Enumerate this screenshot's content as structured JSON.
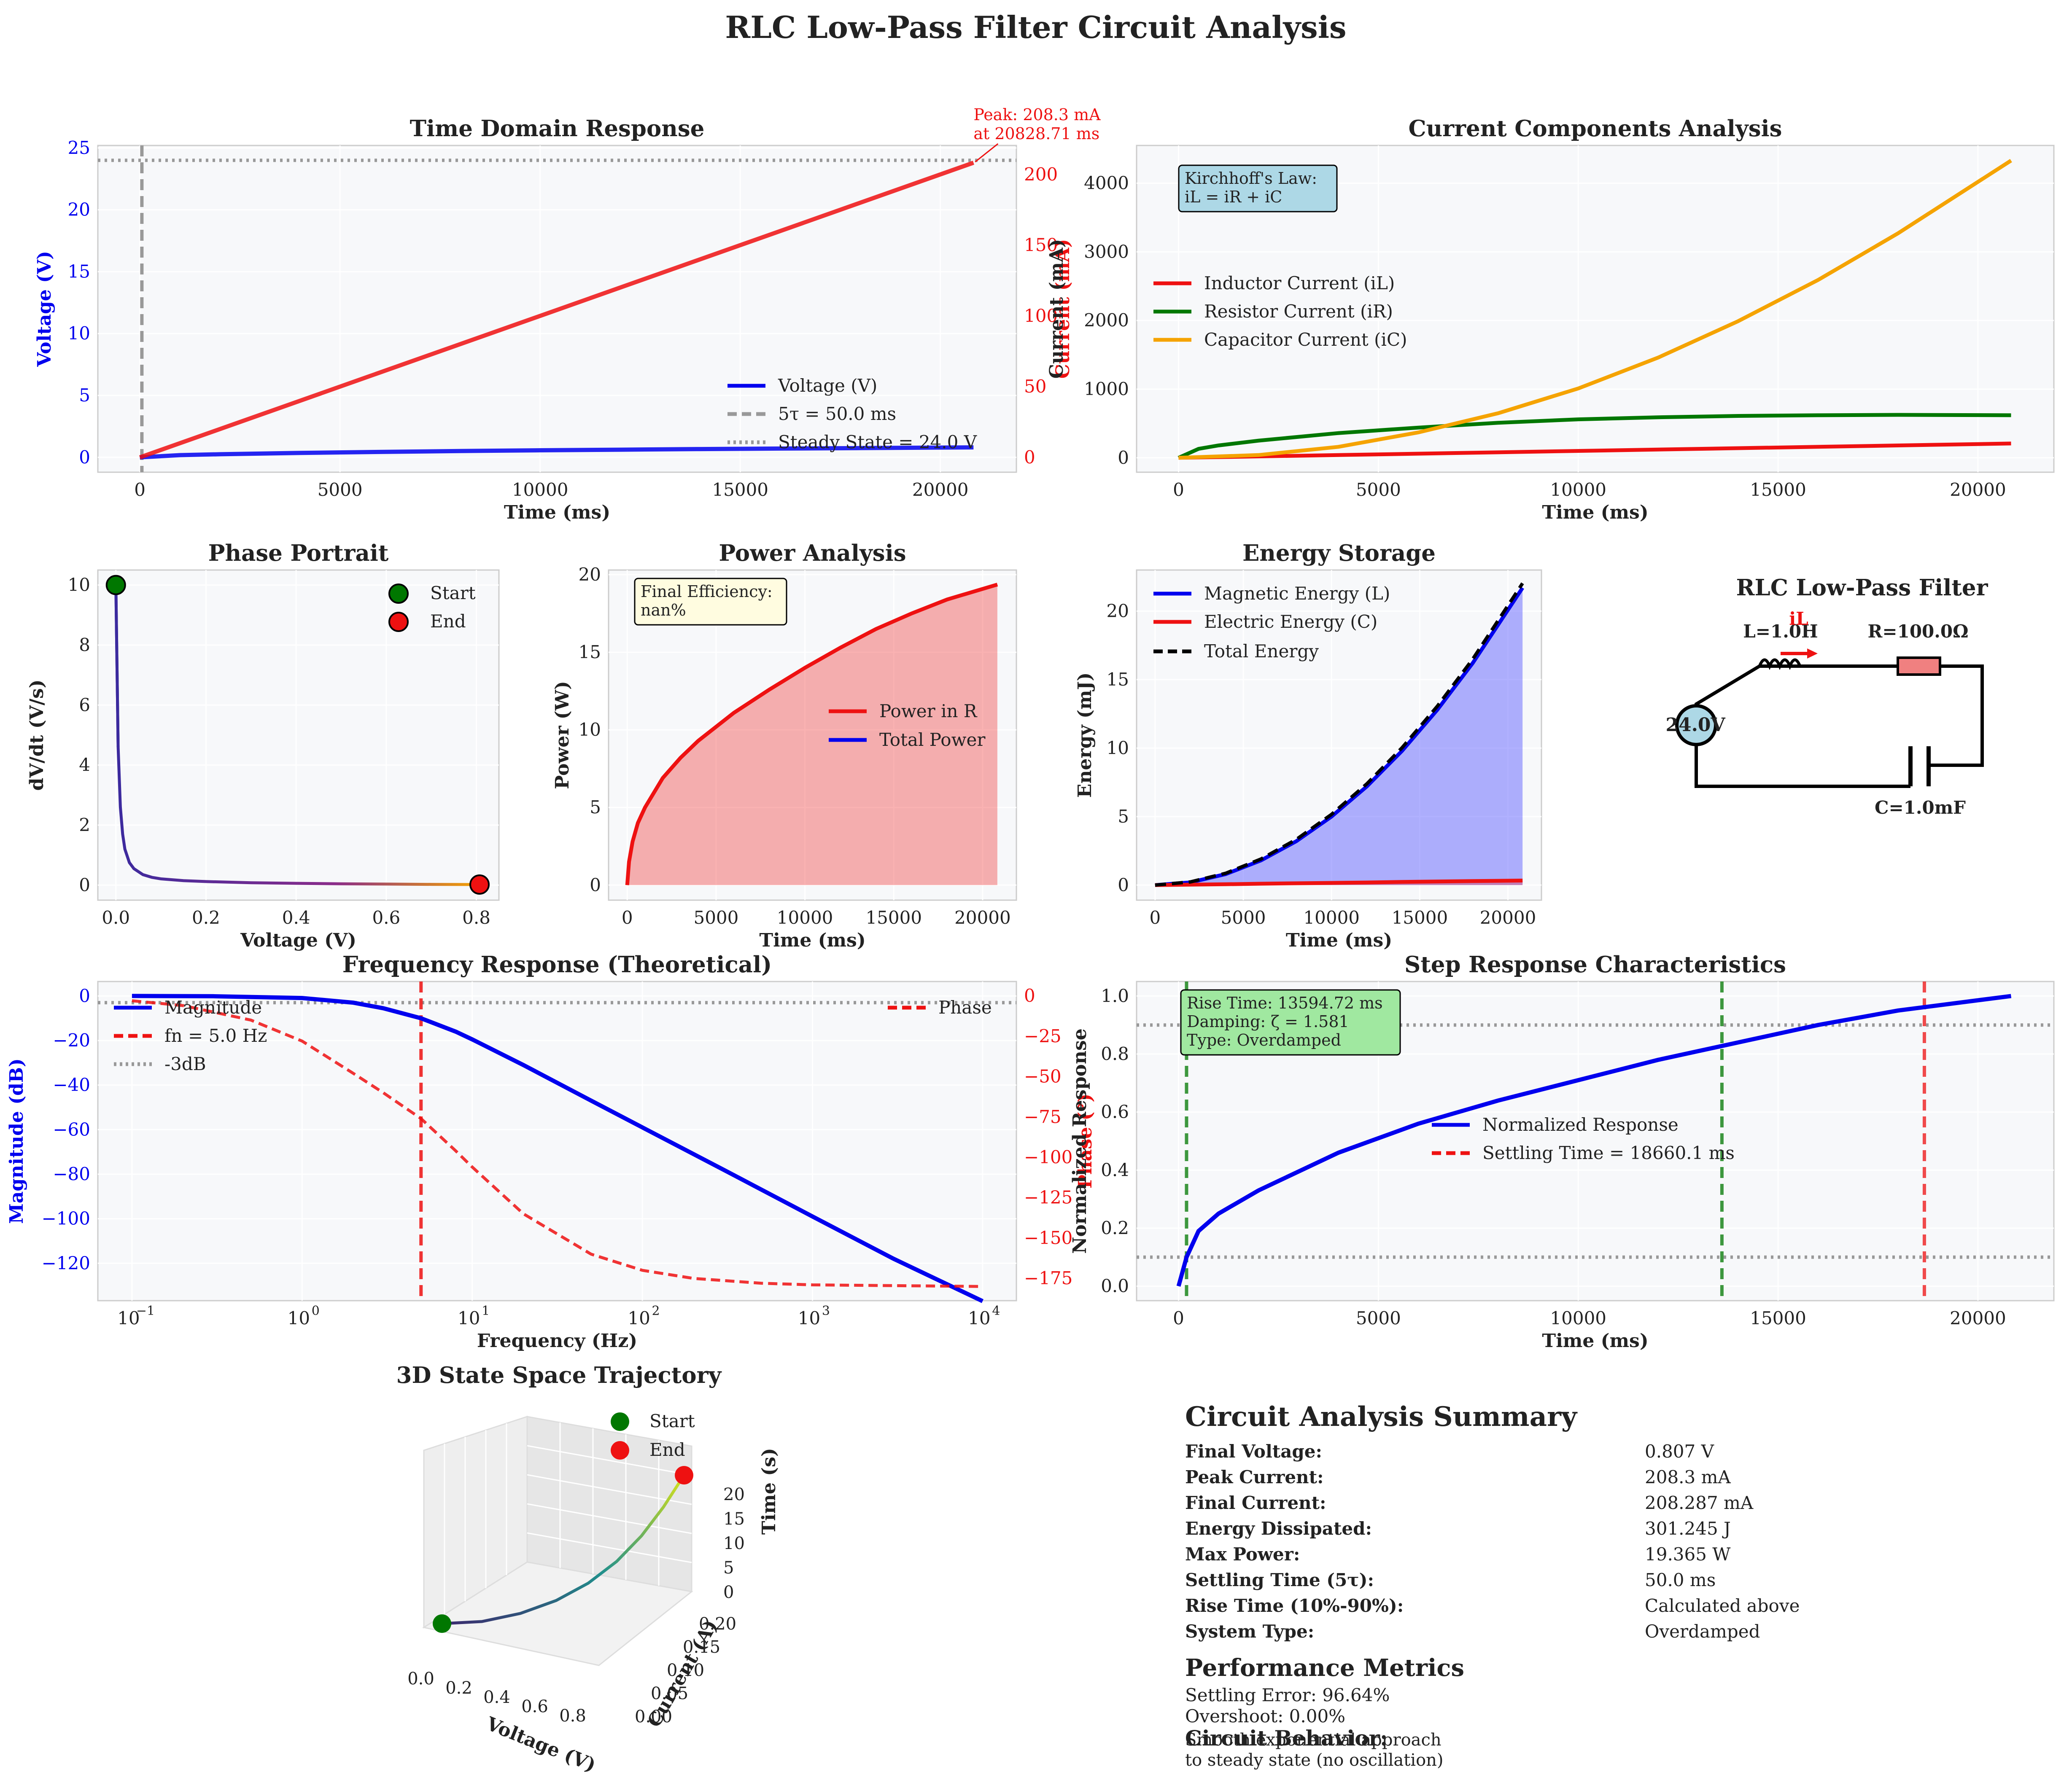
{
  "figure": {
    "title": "RLC Low-Pass Filter Circuit Analysis"
  },
  "colors": {
    "blue": "#0000ee",
    "red": "#ee1111",
    "green": "#007700",
    "orange": "#f5a300",
    "gray": "#999999",
    "panel_bg": "#f7f8fa",
    "grid": "#ffffff",
    "spine": "#cccccc"
  },
  "chart_data": [
    {
      "id": "time_domain",
      "type": "line",
      "title": "Time Domain Response",
      "xlabel": "Time (ms)",
      "ylabel": "Voltage (V)",
      "y2label": "Current (mA)",
      "xlim": [
        -1050,
        21900
      ],
      "ylim": [
        -1.2,
        25.2
      ],
      "y2lim": [
        -10.5,
        220.5
      ],
      "xticks": [
        0,
        5000,
        10000,
        15000,
        20000
      ],
      "yticks": [
        0,
        5,
        10,
        15,
        20,
        25
      ],
      "y2ticks": [
        0,
        50,
        100,
        150,
        200
      ],
      "series": [
        {
          "name": "Voltage (V)",
          "axis": "y",
          "x": [
            0,
            1000,
            2000,
            4000,
            6000,
            8000,
            10000,
            12000,
            14000,
            16000,
            18000,
            20828.71
          ],
          "values": [
            0,
            0.18,
            0.25,
            0.36,
            0.44,
            0.51,
            0.57,
            0.62,
            0.67,
            0.71,
            0.75,
            0.807
          ]
        },
        {
          "name": "Current (mA)",
          "axis": "y2",
          "x": [
            0,
            20828.71
          ],
          "values": [
            0,
            208.3
          ]
        }
      ],
      "legend": [
        {
          "label": "Voltage (V)",
          "style": "solid",
          "color": "blue"
        },
        {
          "label": "5τ = 50.0 ms",
          "style": "dashed",
          "color": "gray"
        },
        {
          "label": "Steady State = 24.0 V",
          "style": "dotted",
          "color": "gray"
        }
      ],
      "vline_x": 50,
      "hline_y": 24.0,
      "annotation": [
        "Peak: 208.3 mA",
        "at 20828.71 ms"
      ]
    },
    {
      "id": "current_components",
      "type": "line",
      "title": "Current Components Analysis",
      "xlabel": "Time (ms)",
      "ylabel": "Current (mA)",
      "xlim": [
        -1050,
        21900
      ],
      "ylim": [
        -210,
        4550
      ],
      "xticks": [
        0,
        5000,
        10000,
        15000,
        20000
      ],
      "yticks": [
        0,
        1000,
        2000,
        3000,
        4000
      ],
      "series": [
        {
          "name": "Inductor Current (iL)",
          "x": [
            0,
            20828.71
          ],
          "values": [
            0,
            208.3
          ]
        },
        {
          "name": "Resistor Current (iR)",
          "x": [
            0,
            500,
            1000,
            2000,
            4000,
            6000,
            8000,
            10000,
            12000,
            14000,
            16000,
            18000,
            20828.71
          ],
          "values": [
            0,
            130,
            180,
            250,
            360,
            440,
            510,
            560,
            590,
            610,
            620,
            625,
            620
          ]
        },
        {
          "name": "Capacitor Current (iC)",
          "x": [
            0,
            2000,
            4000,
            6000,
            8000,
            10000,
            12000,
            14000,
            16000,
            18000,
            20828.71
          ],
          "values": [
            0,
            40,
            160,
            370,
            650,
            1010,
            1460,
            1990,
            2590,
            3270,
            4330
          ]
        }
      ],
      "textbox": [
        "Kirchhoff's Law:",
        "iL = iR + iC"
      ]
    },
    {
      "id": "phase_portrait",
      "type": "line",
      "title": "Phase Portrait",
      "xlabel": "Voltage (V)",
      "ylabel": "dV/dt (V/s)",
      "xlim": [
        -0.04,
        0.85
      ],
      "ylim": [
        -0.5,
        10.5
      ],
      "xticks": [
        0.0,
        0.2,
        0.4,
        0.6,
        0.8
      ],
      "yticks": [
        0,
        2,
        4,
        6,
        8,
        10
      ],
      "series": [
        {
          "name": "trajectory",
          "x": [
            0.0,
            0.005,
            0.01,
            0.015,
            0.02,
            0.03,
            0.04,
            0.06,
            0.08,
            0.1,
            0.15,
            0.2,
            0.3,
            0.4,
            0.5,
            0.6,
            0.7,
            0.807
          ],
          "values": [
            10,
            4.6,
            2.6,
            1.7,
            1.2,
            0.75,
            0.55,
            0.35,
            0.26,
            0.21,
            0.15,
            0.12,
            0.08,
            0.06,
            0.045,
            0.035,
            0.025,
            0.02
          ]
        }
      ],
      "markers": [
        {
          "label": "Start",
          "x": 0.0,
          "y": 10
        },
        {
          "label": "End",
          "x": 0.807,
          "y": 0.02
        }
      ]
    },
    {
      "id": "power_analysis",
      "type": "area",
      "title": "Power Analysis",
      "xlabel": "Time (ms)",
      "ylabel": "Power (W)",
      "xlim": [
        -1050,
        21900
      ],
      "ylim": [
        -0.97,
        20.3
      ],
      "xticks": [
        0,
        5000,
        10000,
        15000,
        20000
      ],
      "yticks": [
        0,
        5,
        10,
        15,
        20
      ],
      "series": [
        {
          "name": "Power in R",
          "x": [
            0,
            100,
            300,
            600,
            1000,
            2000,
            3000,
            4000,
            6000,
            8000,
            10000,
            12000,
            14000,
            16000,
            18000,
            20828.71
          ],
          "values": [
            0,
            1.5,
            2.8,
            4.0,
            5.0,
            6.9,
            8.2,
            9.3,
            11.1,
            12.6,
            14.0,
            15.3,
            16.5,
            17.5,
            18.4,
            19.365
          ]
        }
      ],
      "legend": [
        {
          "label": "Power in R",
          "color": "red"
        },
        {
          "label": "Total Power",
          "color": "blue"
        }
      ],
      "textbox": [
        "Final Efficiency:",
        "nan%"
      ]
    },
    {
      "id": "energy_storage",
      "type": "area",
      "title": "Energy Storage",
      "xlabel": "Time (ms)",
      "ylabel": "Energy (mJ)",
      "xlim": [
        -1050,
        21900
      ],
      "ylim": [
        -1.1,
        23.0
      ],
      "xticks": [
        0,
        5000,
        10000,
        15000,
        20000
      ],
      "yticks": [
        0,
        5,
        10,
        15,
        20
      ],
      "series": [
        {
          "name": "Magnetic Energy (L)",
          "x": [
            0,
            2000,
            4000,
            6000,
            8000,
            10000,
            12000,
            14000,
            16000,
            18000,
            20828.71
          ],
          "values": [
            0,
            0.2,
            0.8,
            1.8,
            3.2,
            5.0,
            7.2,
            9.8,
            12.8,
            16.2,
            21.7
          ]
        },
        {
          "name": "Electric Energy (C)",
          "x": [
            0,
            2000,
            4000,
            6000,
            8000,
            10000,
            12000,
            14000,
            16000,
            18000,
            20828.71
          ],
          "values": [
            0,
            0.03,
            0.06,
            0.1,
            0.13,
            0.16,
            0.19,
            0.23,
            0.26,
            0.29,
            0.33
          ]
        },
        {
          "name": "Total Energy",
          "x": [
            0,
            2000,
            4000,
            6000,
            8000,
            10000,
            12000,
            14000,
            16000,
            18000,
            20828.71
          ],
          "values": [
            0,
            0.23,
            0.86,
            1.9,
            3.33,
            5.16,
            7.39,
            10.03,
            13.06,
            16.49,
            22.03
          ]
        }
      ]
    },
    {
      "id": "frequency_response",
      "type": "line",
      "title": "Frequency Response (Theoretical)",
      "xlabel": "Frequency (Hz)",
      "ylabel": "Magnitude (dB)",
      "y2label": "Phase (°)",
      "xscale": "log",
      "xlim": [
        0.063,
        15800
      ],
      "ylim": [
        -136.8,
        6.5
      ],
      "y2lim": [
        -188.8,
        8.9
      ],
      "xtick_labels": [
        "10",
        "10",
        "10",
        "10",
        "10",
        "10"
      ],
      "xtick_exponents": [
        "−1",
        "0",
        "1",
        "2",
        "3",
        "4"
      ],
      "xticks": [
        0.1,
        1,
        10,
        100,
        1000,
        10000
      ],
      "yticks": [
        0,
        -20,
        -40,
        -60,
        -80,
        -100,
        -120
      ],
      "y2ticks": [
        0,
        -25,
        -50,
        -75,
        -100,
        -125,
        -150,
        -175
      ],
      "series": [
        {
          "name": "Magnitude",
          "axis": "y",
          "x": [
            0.1,
            0.3,
            1,
            2,
            3,
            5,
            8,
            10,
            20,
            50,
            100,
            300,
            1000,
            3000,
            10000
          ],
          "values": [
            0,
            -0.1,
            -0.9,
            -3.0,
            -5.5,
            -10,
            -16,
            -19.5,
            -31,
            -47,
            -59,
            -78,
            -99,
            -118,
            -137
          ]
        },
        {
          "name": "Phase",
          "axis": "y2",
          "x": [
            0.1,
            0.2,
            0.5,
            1,
            2,
            3,
            5,
            8,
            10,
            20,
            50,
            100,
            200,
            500,
            1000,
            10000
          ],
          "values": [
            -3,
            -6,
            -15,
            -28,
            -48,
            -60,
            -76,
            -96,
            -106,
            -135,
            -160,
            -170,
            -175,
            -178,
            -179,
            -180
          ]
        }
      ],
      "legend": [
        {
          "label": "Magnitude",
          "color": "blue",
          "style": "solid"
        },
        {
          "label": "fn = 5.0 Hz",
          "color": "red",
          "style": "dashed"
        },
        {
          "label": "-3dB",
          "color": "gray",
          "style": "dotted"
        }
      ],
      "legend2": [
        {
          "label": "Phase",
          "color": "red",
          "style": "dashed"
        }
      ],
      "vline_x": 5.0,
      "hline_y": -3
    },
    {
      "id": "step_response",
      "type": "line",
      "title": "Step Response Characteristics",
      "xlabel": "Time (ms)",
      "ylabel": "Normalized Response",
      "xlim": [
        -1050,
        21900
      ],
      "ylim": [
        -0.05,
        1.05
      ],
      "xticks": [
        0,
        5000,
        10000,
        15000,
        20000
      ],
      "yticks": [
        0.0,
        0.2,
        0.4,
        0.6,
        0.8,
        1.0
      ],
      "series": [
        {
          "name": "Normalized Response",
          "x": [
            0,
            200,
            500,
            1000,
            2000,
            4000,
            6000,
            8000,
            10000,
            12000,
            14000,
            16000,
            18000,
            20828.71
          ],
          "values": [
            0,
            0.1,
            0.19,
            0.25,
            0.33,
            0.46,
            0.56,
            0.64,
            0.71,
            0.78,
            0.84,
            0.9,
            0.95,
            1.0
          ]
        }
      ],
      "legend": [
        {
          "label": "Normalized Response",
          "color": "blue",
          "style": "solid"
        },
        {
          "label": "Settling Time = 18660.1 ms",
          "color": "red",
          "style": "dashed"
        }
      ],
      "vlines_green": [
        200,
        13594.72
      ],
      "vline_red": 18660.1,
      "hlines": [
        0.1,
        0.9
      ],
      "textbox": [
        "Rise Time: 13594.72 ms",
        "Damping: ζ = 1.581",
        "Type: Overdamped"
      ]
    },
    {
      "id": "state_space_3d",
      "type": "line",
      "title": "3D State Space Trajectory",
      "xlabel": "Voltage (V)",
      "ylabel": "Current (A)",
      "zlabel": "Time (s)",
      "xticks": [
        0.0,
        0.2,
        0.4,
        0.6,
        0.8
      ],
      "yticks": [
        0.0,
        0.05,
        0.1,
        0.15,
        0.2
      ],
      "zticks": [
        0,
        5,
        10,
        15,
        20
      ],
      "series": [
        {
          "name": "trajectory",
          "x": [
            0,
            0.1,
            0.2,
            0.3,
            0.4,
            0.5,
            0.6,
            0.7,
            0.807
          ],
          "y": [
            0,
            0.02,
            0.04,
            0.07,
            0.1,
            0.13,
            0.16,
            0.19,
            0.208
          ],
          "values": [
            0,
            0.5,
            1.5,
            3,
            5,
            8,
            11,
            15,
            20.8
          ]
        }
      ],
      "legend": [
        {
          "label": "Start",
          "color": "green"
        },
        {
          "label": "End",
          "color": "red"
        }
      ]
    }
  ],
  "circuit": {
    "title": "RLC Low-Pass Filter",
    "L": "L=1.0H",
    "R": "R=100.0Ω",
    "C": "C=1.0mF",
    "source": "24.0V",
    "current": "iL"
  },
  "summary": {
    "title": "Circuit Analysis Summary",
    "rows": [
      {
        "label": "Final Voltage:",
        "value": "0.807 V"
      },
      {
        "label": "Peak Current:",
        "value": "208.3 mA"
      },
      {
        "label": "Final Current:",
        "value": "208.287 mA"
      },
      {
        "label": "Energy Dissipated:",
        "value": "301.245 J"
      },
      {
        "label": "Max Power:",
        "value": "19.365 W"
      },
      {
        "label": "Settling Time (5τ):",
        "value": "50.0 ms"
      },
      {
        "label": "Rise Time (10%-90%):",
        "value": "Calculated above"
      },
      {
        "label": "System Type:",
        "value": "Overdamped"
      }
    ],
    "metrics_title": "Performance Metrics",
    "metrics": [
      "Settling Error: 96.64%",
      "Overshoot: 0.00%"
    ],
    "behavior_title": "Circuit Behavior:",
    "behavior": [
      "Smooth exponential approach",
      "to steady state (no oscillation)"
    ]
  }
}
